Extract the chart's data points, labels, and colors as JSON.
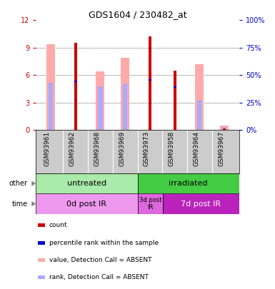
{
  "title": "GDS1604 / 230482_at",
  "samples": [
    "GSM93961",
    "GSM93962",
    "GSM93968",
    "GSM93969",
    "GSM93973",
    "GSM93958",
    "GSM93964",
    "GSM93967"
  ],
  "count_values": [
    0.0,
    9.5,
    0.0,
    0.0,
    10.2,
    6.5,
    0.0,
    0.2
  ],
  "count_rank": [
    0.0,
    5.3,
    0.0,
    0.0,
    5.5,
    4.7,
    0.0,
    0.0
  ],
  "absent_value": [
    9.4,
    0.0,
    6.4,
    7.9,
    0.0,
    0.0,
    7.2,
    0.5
  ],
  "absent_rank": [
    5.2,
    0.0,
    4.8,
    5.1,
    0.0,
    0.0,
    3.3,
    0.3
  ],
  "ylim_left": [
    0,
    12
  ],
  "ylim_right": [
    0,
    100
  ],
  "yticks_left": [
    0,
    3,
    6,
    9,
    12
  ],
  "yticks_right": [
    0,
    25,
    50,
    75,
    100
  ],
  "left_tick_color": "#cc0000",
  "right_tick_color": "#0000cc",
  "count_color": "#cc0000",
  "rank_color": "#0000cc",
  "absent_value_color": "#ffaaaa",
  "absent_rank_color": "#aaaaff",
  "untreated_color": "#aaeaaa",
  "irradiated_color": "#44cc44",
  "time_0d_color": "#ee99ee",
  "time_3d_color": "#dd66dd",
  "time_7d_color": "#bb22bb",
  "gray_color": "#cccccc",
  "group_untreated_label": "untreated",
  "group_irradiated_label": "irradiated",
  "time_0d_label": "0d post IR",
  "time_3d_label": "3d post\nIR",
  "time_7d_label": "7d post IR",
  "legend_items": [
    "count",
    "percentile rank within the sample",
    "value, Detection Call = ABSENT",
    "rank, Detection Call = ABSENT"
  ],
  "legend_colors": [
    "#cc0000",
    "#0000cc",
    "#ffaaaa",
    "#aaaaff"
  ]
}
